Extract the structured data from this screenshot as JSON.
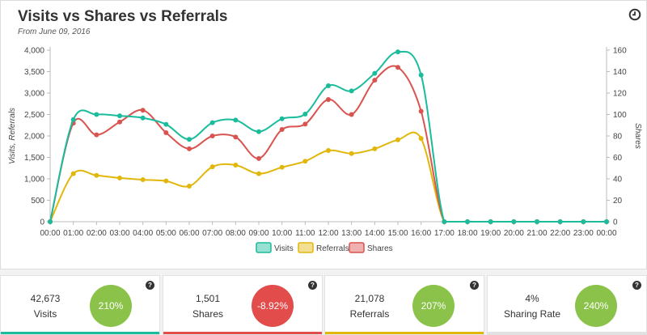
{
  "header": {
    "title": "Visits vs Shares vs Referrals",
    "subtitle": "From June 09, 2016",
    "clock_icon": "clock-icon"
  },
  "chart_data": {
    "type": "line",
    "categories": [
      "00:00",
      "01:00",
      "02:00",
      "03:00",
      "04:00",
      "05:00",
      "06:00",
      "07:00",
      "08:00",
      "09:00",
      "10:00",
      "11:00",
      "12:00",
      "13:00",
      "14:00",
      "15:00",
      "16:00",
      "17:00",
      "18:00",
      "19:00",
      "20:00",
      "21:00",
      "22:00",
      "23:00",
      "00:00"
    ],
    "ylabel": "Visits, Referrals",
    "y2label": "Shares",
    "ylim": [
      0,
      4000
    ],
    "y2lim": [
      0,
      160
    ],
    "yticks": [
      "0",
      "500",
      "1,000",
      "1,500",
      "2,000",
      "2,500",
      "3,000",
      "3,500",
      "4,000"
    ],
    "y2ticks": [
      "0",
      "20",
      "40",
      "60",
      "80",
      "100",
      "120",
      "140",
      "160"
    ],
    "legend_position": "bottom",
    "grid": false,
    "series": [
      {
        "name": "Visits",
        "axis": "left",
        "color": "#1abc9c",
        "values": [
          0,
          2380,
          2500,
          2470,
          2420,
          2270,
          1920,
          2310,
          2370,
          2100,
          2400,
          2510,
          3170,
          3050,
          3460,
          3960,
          3420,
          0,
          0,
          0,
          0,
          0,
          0,
          0,
          0
        ]
      },
      {
        "name": "Referrals",
        "axis": "left",
        "color": "#e2b70c",
        "values": [
          0,
          1120,
          1080,
          1020,
          980,
          950,
          830,
          1280,
          1320,
          1120,
          1270,
          1410,
          1660,
          1590,
          1700,
          1910,
          1940,
          0,
          0,
          0,
          0,
          0,
          0,
          0,
          0
        ]
      },
      {
        "name": "Shares",
        "axis": "right",
        "color": "#d9534f",
        "values": [
          0,
          92,
          81,
          93,
          104,
          83,
          68,
          80,
          79,
          59,
          86,
          91,
          114,
          100,
          132,
          144,
          103,
          0,
          0,
          0,
          0,
          0,
          0,
          0,
          0
        ]
      }
    ]
  },
  "cards": [
    {
      "value": "42,673",
      "label": "Visits",
      "pct": "210%",
      "pct_color": "#8bc34a",
      "bar_color": "#1abc9c"
    },
    {
      "value": "1,501",
      "label": "Shares",
      "pct": "-8.92%",
      "pct_color": "#e24c4b",
      "bar_color": "#e24c4b"
    },
    {
      "value": "21,078",
      "label": "Referrals",
      "pct": "207%",
      "pct_color": "#8bc34a",
      "bar_color": "#e2b70c"
    },
    {
      "value": "4%",
      "label": "Sharing Rate",
      "pct": "240%",
      "pct_color": "#8bc34a",
      "bar_color": "#e2e2e2"
    }
  ],
  "help_glyph": "?"
}
